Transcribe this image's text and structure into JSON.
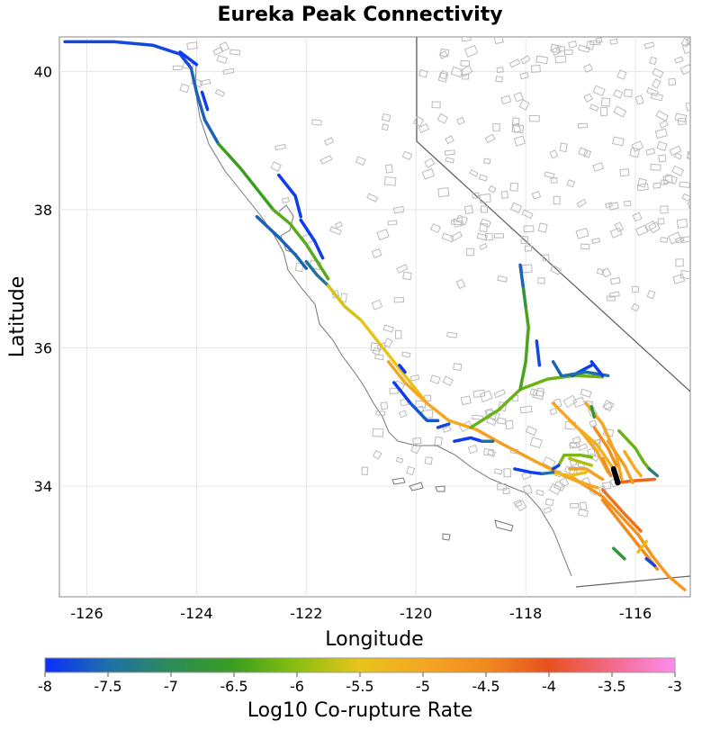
{
  "chart_data": {
    "type": "map",
    "title": "Eureka Peak Connectivity",
    "xlabel": "Longitude",
    "ylabel": "Latitude",
    "xlim": [
      -126.5,
      -115.0
    ],
    "ylim": [
      32.4,
      40.5
    ],
    "x_ticks": [
      -126,
      -124,
      -122,
      -120,
      -118,
      -116
    ],
    "x_tick_labels": [
      "-126",
      "-124",
      "-122",
      "-120",
      "-118",
      "-116"
    ],
    "y_ticks": [
      34,
      36,
      38,
      40
    ],
    "y_tick_labels": [
      "34",
      "36",
      "38",
      "40"
    ],
    "grid": true,
    "colorbar": {
      "label": "Log10 Co-rupture Rate",
      "range": [
        -8,
        -3
      ],
      "ticks": [
        -8,
        -7.5,
        -7,
        -6.5,
        -6,
        -5.5,
        -5,
        -4.5,
        -4,
        -3.5,
        -3
      ],
      "tick_labels": [
        "-8",
        "-7.5",
        "-7",
        "-6.5",
        "-6",
        "-5.5",
        "-5",
        "-4.5",
        "-4",
        "-3.5",
        "-3"
      ],
      "colors": [
        "#0a2fff",
        "#1f6fa8",
        "#2e8b57",
        "#3a9e20",
        "#8bbf10",
        "#e8c41a",
        "#f5a623",
        "#f08a1e",
        "#e8501e",
        "#f26a8a",
        "#ff8cf0"
      ]
    },
    "source_fault": {
      "name": "Eureka Peak",
      "color": "#000000",
      "points": [
        [
          -116.4,
          34.25
        ],
        [
          -116.32,
          34.05
        ]
      ]
    },
    "fault_sections": [
      {
        "rate": -7.8,
        "points": [
          [
            -126.4,
            40.43
          ],
          [
            -125.5,
            40.43
          ],
          [
            -124.8,
            40.38
          ],
          [
            -124.3,
            40.25
          ],
          [
            -124.1,
            40.05
          ]
        ]
      },
      {
        "rate": -7.9,
        "points": [
          [
            -124.3,
            40.28
          ],
          [
            -124.0,
            40.1
          ]
        ]
      },
      {
        "rate": -7.6,
        "points": [
          [
            -124.1,
            40.05
          ],
          [
            -124.0,
            39.7
          ],
          [
            -123.85,
            39.3
          ],
          [
            -123.6,
            38.95
          ]
        ]
      },
      {
        "rate": -7.9,
        "points": [
          [
            -123.9,
            39.7
          ],
          [
            -123.8,
            39.45
          ]
        ]
      },
      {
        "rate": -6.5,
        "points": [
          [
            -123.6,
            38.95
          ],
          [
            -123.2,
            38.6
          ],
          [
            -122.9,
            38.3
          ],
          [
            -122.6,
            38.0
          ]
        ]
      },
      {
        "rate": -6.3,
        "points": [
          [
            -122.6,
            38.0
          ],
          [
            -122.3,
            37.8
          ],
          [
            -122.0,
            37.5
          ],
          [
            -121.6,
            37.0
          ]
        ]
      },
      {
        "rate": -7.9,
        "points": [
          [
            -122.5,
            38.5
          ],
          [
            -122.2,
            38.2
          ],
          [
            -122.1,
            37.9
          ]
        ]
      },
      {
        "rate": -7.6,
        "points": [
          [
            -122.9,
            37.9
          ],
          [
            -122.5,
            37.6
          ],
          [
            -122.2,
            37.35
          ],
          [
            -122.0,
            37.15
          ]
        ]
      },
      {
        "rate": -7.9,
        "points": [
          [
            -122.1,
            37.85
          ],
          [
            -121.85,
            37.55
          ],
          [
            -121.7,
            37.3
          ]
        ]
      },
      {
        "rate": -7.4,
        "points": [
          [
            -122.0,
            37.25
          ],
          [
            -121.8,
            37.05
          ],
          [
            -121.6,
            36.9
          ]
        ]
      },
      {
        "rate": -5.6,
        "points": [
          [
            -121.6,
            36.9
          ],
          [
            -121.3,
            36.6
          ],
          [
            -121.0,
            36.4
          ]
        ]
      },
      {
        "rate": -5.5,
        "points": [
          [
            -121.0,
            36.4
          ],
          [
            -120.6,
            36.0
          ],
          [
            -120.2,
            35.6
          ],
          [
            -119.8,
            35.2
          ]
        ]
      },
      {
        "rate": -5.0,
        "points": [
          [
            -120.5,
            35.8
          ],
          [
            -120.2,
            35.5
          ],
          [
            -119.8,
            35.2
          ],
          [
            -119.4,
            34.95
          ],
          [
            -118.9,
            34.82
          ]
        ]
      },
      {
        "rate": -4.9,
        "points": [
          [
            -118.9,
            34.82
          ],
          [
            -118.4,
            34.6
          ],
          [
            -117.8,
            34.35
          ],
          [
            -117.3,
            34.15
          ],
          [
            -116.8,
            34.0
          ]
        ]
      },
      {
        "rate": -4.7,
        "points": [
          [
            -117.2,
            34.15
          ],
          [
            -116.9,
            34.0
          ],
          [
            -116.6,
            33.85
          ],
          [
            -116.3,
            33.6
          ],
          [
            -115.95,
            33.3
          ],
          [
            -115.7,
            33.0
          ]
        ]
      },
      {
        "rate": -4.8,
        "points": [
          [
            -115.7,
            33.0
          ],
          [
            -115.4,
            32.7
          ],
          [
            -115.1,
            32.5
          ]
        ]
      },
      {
        "rate": -4.3,
        "points": [
          [
            -116.6,
            33.95
          ],
          [
            -116.2,
            33.6
          ],
          [
            -115.9,
            33.35
          ]
        ]
      },
      {
        "rate": -4.2,
        "points": [
          [
            -116.35,
            34.05
          ],
          [
            -116.0,
            34.08
          ],
          [
            -115.65,
            34.1
          ]
        ]
      },
      {
        "rate": -4.5,
        "points": [
          [
            -116.6,
            33.8
          ],
          [
            -116.2,
            33.4
          ],
          [
            -116.0,
            33.2
          ],
          [
            -115.8,
            33.0
          ],
          [
            -115.6,
            32.8
          ]
        ]
      },
      {
        "rate": -5.3,
        "points": [
          [
            -115.8,
            33.2
          ],
          [
            -115.95,
            33.05
          ]
        ]
      },
      {
        "rate": -7.8,
        "points": [
          [
            -115.8,
            32.95
          ],
          [
            -115.65,
            32.85
          ]
        ]
      },
      {
        "rate": -6.7,
        "points": [
          [
            -116.4,
            33.1
          ],
          [
            -116.2,
            32.95
          ]
        ]
      },
      {
        "rate": -6.2,
        "points": [
          [
            -119.0,
            34.85
          ],
          [
            -118.5,
            35.1
          ],
          [
            -118.1,
            35.4
          ],
          [
            -117.6,
            35.55
          ],
          [
            -117.1,
            35.6
          ],
          [
            -116.6,
            35.58
          ]
        ]
      },
      {
        "rate": -6.4,
        "points": [
          [
            -118.1,
            35.4
          ],
          [
            -118.0,
            35.8
          ],
          [
            -117.95,
            36.3
          ],
          [
            -118.0,
            36.6
          ]
        ]
      },
      {
        "rate": -6.8,
        "points": [
          [
            -118.0,
            36.6
          ],
          [
            -118.05,
            36.9
          ]
        ]
      },
      {
        "rate": -7.6,
        "points": [
          [
            -118.05,
            36.9
          ],
          [
            -118.1,
            37.2
          ]
        ]
      },
      {
        "rate": -7.8,
        "points": [
          [
            -117.8,
            36.1
          ],
          [
            -117.75,
            35.75
          ]
        ]
      },
      {
        "rate": -7.6,
        "points": [
          [
            -117.5,
            35.8
          ],
          [
            -117.35,
            35.6
          ]
        ]
      },
      {
        "rate": -7.9,
        "points": [
          [
            -117.15,
            35.6
          ],
          [
            -116.8,
            35.75
          ]
        ]
      },
      {
        "rate": -7.5,
        "points": [
          [
            -117.3,
            35.6
          ],
          [
            -116.9,
            35.65
          ],
          [
            -116.5,
            35.6
          ]
        ]
      },
      {
        "rate": -7.9,
        "points": [
          [
            -116.8,
            35.8
          ],
          [
            -116.6,
            35.6
          ]
        ]
      },
      {
        "rate": -5.0,
        "points": [
          [
            -116.9,
            35.2
          ],
          [
            -116.6,
            34.9
          ],
          [
            -116.35,
            34.45
          ],
          [
            -116.25,
            34.1
          ]
        ]
      },
      {
        "rate": -5.2,
        "points": [
          [
            -117.2,
            34.95
          ],
          [
            -116.7,
            34.6
          ],
          [
            -116.4,
            34.25
          ]
        ]
      },
      {
        "rate": -5.0,
        "points": [
          [
            -117.5,
            35.2
          ],
          [
            -117.0,
            34.8
          ],
          [
            -116.7,
            34.5
          ],
          [
            -116.5,
            34.2
          ]
        ]
      },
      {
        "rate": -4.6,
        "points": [
          [
            -116.75,
            34.85
          ],
          [
            -116.5,
            34.55
          ],
          [
            -116.35,
            34.3
          ]
        ]
      },
      {
        "rate": -4.9,
        "points": [
          [
            -116.5,
            34.65
          ],
          [
            -116.2,
            34.3
          ],
          [
            -116.05,
            34.05
          ]
        ]
      },
      {
        "rate": -5.1,
        "points": [
          [
            -116.2,
            34.5
          ],
          [
            -116.0,
            34.25
          ],
          [
            -115.9,
            34.15
          ]
        ]
      },
      {
        "rate": -4.6,
        "points": [
          [
            -116.6,
            34.4
          ],
          [
            -116.45,
            34.15
          ]
        ]
      },
      {
        "rate": -6.2,
        "points": [
          [
            -116.3,
            34.8
          ],
          [
            -116.0,
            34.55
          ],
          [
            -115.85,
            34.35
          ],
          [
            -115.75,
            34.25
          ]
        ]
      },
      {
        "rate": -7.2,
        "points": [
          [
            -115.75,
            34.25
          ],
          [
            -115.6,
            34.15
          ]
        ]
      },
      {
        "rate": -6.8,
        "points": [
          [
            -116.8,
            35.15
          ],
          [
            -116.75,
            35.0
          ]
        ]
      },
      {
        "rate": -5.8,
        "points": [
          [
            -117.2,
            34.4
          ],
          [
            -117.0,
            34.35
          ],
          [
            -116.8,
            34.3
          ]
        ]
      },
      {
        "rate": -6.1,
        "points": [
          [
            -117.4,
            34.3
          ],
          [
            -117.3,
            34.45
          ],
          [
            -117.0,
            34.45
          ],
          [
            -116.8,
            34.42
          ]
        ]
      },
      {
        "rate": -5.4,
        "points": [
          [
            -117.5,
            34.2
          ],
          [
            -117.2,
            34.15
          ],
          [
            -116.9,
            34.2
          ]
        ]
      },
      {
        "rate": -5.0,
        "points": [
          [
            -117.3,
            34.15
          ],
          [
            -117.0,
            34.05
          ],
          [
            -116.7,
            33.98
          ]
        ]
      },
      {
        "rate": -4.9,
        "points": [
          [
            -117.2,
            34.25
          ],
          [
            -116.9,
            34.25
          ],
          [
            -116.6,
            34.1
          ]
        ]
      },
      {
        "rate": -7.9,
        "points": [
          [
            -118.2,
            34.25
          ],
          [
            -117.9,
            34.2
          ],
          [
            -117.7,
            34.18
          ]
        ]
      },
      {
        "rate": -7.5,
        "points": [
          [
            -117.7,
            34.18
          ],
          [
            -117.5,
            34.2
          ]
        ]
      },
      {
        "rate": -7.8,
        "points": [
          [
            -117.5,
            34.25
          ],
          [
            -117.4,
            34.3
          ]
        ]
      },
      {
        "rate": -7.9,
        "points": [
          [
            -120.4,
            35.5
          ],
          [
            -120.2,
            35.3
          ],
          [
            -120.1,
            35.2
          ]
        ]
      },
      {
        "rate": -7.7,
        "points": [
          [
            -120.1,
            35.2
          ],
          [
            -119.8,
            34.95
          ],
          [
            -119.6,
            34.95
          ]
        ]
      },
      {
        "rate": -7.9,
        "points": [
          [
            -120.3,
            35.75
          ],
          [
            -120.2,
            35.65
          ]
        ]
      },
      {
        "rate": -7.8,
        "points": [
          [
            -119.6,
            34.85
          ],
          [
            -119.4,
            34.9
          ]
        ]
      },
      {
        "rate": -7.9,
        "points": [
          [
            -119.3,
            34.65
          ],
          [
            -119.0,
            34.7
          ],
          [
            -118.8,
            34.65
          ]
        ]
      },
      {
        "rate": -7.5,
        "points": [
          [
            -118.8,
            34.65
          ],
          [
            -118.6,
            34.65
          ]
        ]
      }
    ]
  }
}
